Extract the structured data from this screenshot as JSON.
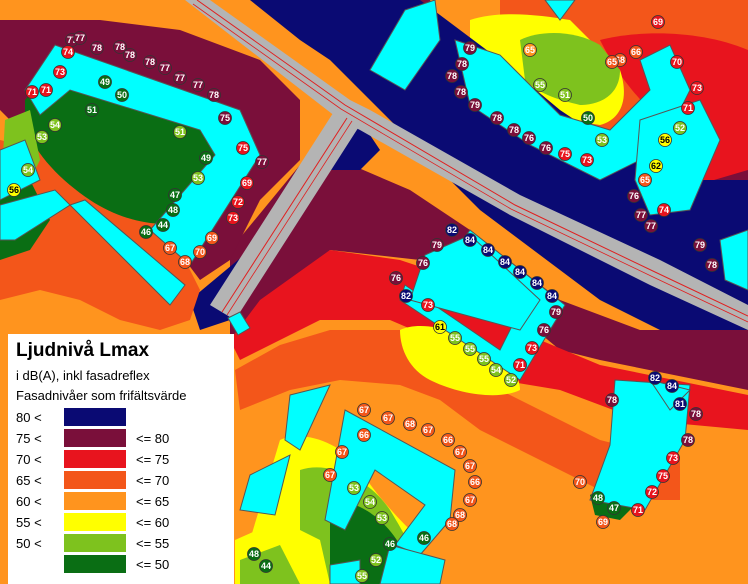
{
  "legend": {
    "title": "Ljudnivå Lmax",
    "subtitle": "i dB(A), inkl fasadreflex",
    "note": "Fasadnivåer som frifältsvärde",
    "classes": [
      {
        "lower": "80 <",
        "upper": "",
        "color": "#0a0a73"
      },
      {
        "lower": "75 <",
        "upper": "<= 80",
        "color": "#7a0f3a"
      },
      {
        "lower": "70 <",
        "upper": "<= 75",
        "color": "#e8141e"
      },
      {
        "lower": "65 <",
        "upper": "<= 70",
        "color": "#f3561a"
      },
      {
        "lower": "60 <",
        "upper": "<= 65",
        "color": "#ff941e"
      },
      {
        "lower": "55 <",
        "upper": "<= 60",
        "color": "#ffff00"
      },
      {
        "lower": "50 <",
        "upper": "<= 55",
        "color": "#7ec21e"
      },
      {
        "lower": "",
        "upper": "<= 50",
        "color": "#0a6e14"
      }
    ]
  },
  "colors": {
    "road": "#b4b4b4",
    "road_line": "#e02020",
    "building": "#00ffff"
  },
  "facade_levels": [
    {
      "v": "77",
      "c": "dark-red"
    },
    {
      "v": "77",
      "c": "dark-red"
    },
    {
      "v": "78",
      "c": "dark-red"
    },
    {
      "v": "78",
      "c": "dark-red"
    },
    {
      "v": "74",
      "c": "red"
    },
    {
      "v": "78",
      "c": "dark-red"
    },
    {
      "v": "78",
      "c": "dark-red"
    },
    {
      "v": "77",
      "c": "dark-red"
    },
    {
      "v": "73",
      "c": "red"
    },
    {
      "v": "71",
      "c": "red"
    },
    {
      "v": "71",
      "c": "red"
    },
    {
      "v": "49",
      "c": "green"
    },
    {
      "v": "50",
      "c": "green"
    },
    {
      "v": "51",
      "c": "green"
    },
    {
      "v": "77",
      "c": "dark-red"
    },
    {
      "v": "77",
      "c": "dark-red"
    },
    {
      "v": "78",
      "c": "dark-red"
    },
    {
      "v": "75",
      "c": "dark-red"
    },
    {
      "v": "54",
      "c": "light-green"
    },
    {
      "v": "53",
      "c": "light-green"
    },
    {
      "v": "51",
      "c": "light-green"
    },
    {
      "v": "49",
      "c": "green"
    },
    {
      "v": "54",
      "c": "light-green"
    },
    {
      "v": "56",
      "c": "yellow"
    },
    {
      "v": "53",
      "c": "light-green"
    },
    {
      "v": "47",
      "c": "green"
    },
    {
      "v": "48",
      "c": "green"
    },
    {
      "v": "44",
      "c": "green"
    },
    {
      "v": "46",
      "c": "green"
    },
    {
      "v": "67",
      "c": "orange-red"
    },
    {
      "v": "70",
      "c": "orange-red"
    },
    {
      "v": "68",
      "c": "orange-red"
    },
    {
      "v": "69",
      "c": "orange-red"
    },
    {
      "v": "72",
      "c": "red"
    },
    {
      "v": "73",
      "c": "red"
    },
    {
      "v": "69",
      "c": "red"
    },
    {
      "v": "75",
      "c": "red"
    },
    {
      "v": "77",
      "c": "dark-red"
    },
    {
      "v": "82",
      "c": "navy"
    },
    {
      "v": "84",
      "c": "navy"
    },
    {
      "v": "84",
      "c": "navy"
    },
    {
      "v": "84",
      "c": "navy"
    },
    {
      "v": "84",
      "c": "navy"
    },
    {
      "v": "84",
      "c": "navy"
    },
    {
      "v": "84",
      "c": "navy"
    },
    {
      "v": "79",
      "c": "dark-red"
    },
    {
      "v": "76",
      "c": "dark-red"
    },
    {
      "v": "73",
      "c": "red"
    },
    {
      "v": "71",
      "c": "red"
    },
    {
      "v": "52",
      "c": "light-green"
    },
    {
      "v": "54",
      "c": "light-green"
    },
    {
      "v": "55",
      "c": "light-green"
    },
    {
      "v": "55",
      "c": "light-green"
    },
    {
      "v": "55",
      "c": "light-green"
    },
    {
      "v": "61",
      "c": "yellow"
    },
    {
      "v": "73",
      "c": "red"
    },
    {
      "v": "76",
      "c": "dark-red"
    },
    {
      "v": "79",
      "c": "dark-red"
    },
    {
      "v": "82",
      "c": "navy"
    },
    {
      "v": "76",
      "c": "dark-red"
    },
    {
      "v": "79",
      "c": "dark-red"
    },
    {
      "v": "78",
      "c": "dark-red"
    },
    {
      "v": "78",
      "c": "dark-red"
    },
    {
      "v": "78",
      "c": "dark-red"
    },
    {
      "v": "79",
      "c": "dark-red"
    },
    {
      "v": "78",
      "c": "dark-red"
    },
    {
      "v": "78",
      "c": "dark-red"
    },
    {
      "v": "76",
      "c": "dark-red"
    },
    {
      "v": "76",
      "c": "dark-red"
    },
    {
      "v": "75",
      "c": "red"
    },
    {
      "v": "73",
      "c": "red"
    },
    {
      "v": "53",
      "c": "light-green"
    },
    {
      "v": "50",
      "c": "green"
    },
    {
      "v": "51",
      "c": "light-green"
    },
    {
      "v": "55",
      "c": "light-green"
    },
    {
      "v": "65",
      "c": "orange"
    },
    {
      "v": "68",
      "c": "orange-red"
    },
    {
      "v": "66",
      "c": "orange-red"
    },
    {
      "v": "65",
      "c": "orange-red"
    },
    {
      "v": "69",
      "c": "red"
    },
    {
      "v": "70",
      "c": "red"
    },
    {
      "v": "73",
      "c": "red"
    },
    {
      "v": "71",
      "c": "red"
    },
    {
      "v": "52",
      "c": "light-green"
    },
    {
      "v": "56",
      "c": "yellow"
    },
    {
      "v": "62",
      "c": "yellow"
    },
    {
      "v": "65",
      "c": "orange-red"
    },
    {
      "v": "76",
      "c": "dark-red"
    },
    {
      "v": "77",
      "c": "dark-red"
    },
    {
      "v": "77",
      "c": "dark-red"
    },
    {
      "v": "74",
      "c": "red"
    },
    {
      "v": "79",
      "c": "dark-red"
    },
    {
      "v": "78",
      "c": "dark-red"
    },
    {
      "v": "82",
      "c": "navy"
    },
    {
      "v": "84",
      "c": "navy"
    },
    {
      "v": "81",
      "c": "navy"
    },
    {
      "v": "78",
      "c": "dark-red"
    },
    {
      "v": "78",
      "c": "dark-red"
    },
    {
      "v": "78",
      "c": "dark-red"
    },
    {
      "v": "73",
      "c": "red"
    },
    {
      "v": "75",
      "c": "red"
    },
    {
      "v": "72",
      "c": "red"
    },
    {
      "v": "71",
      "c": "red"
    },
    {
      "v": "70",
      "c": "orange-red"
    },
    {
      "v": "48",
      "c": "green"
    },
    {
      "v": "47",
      "c": "green"
    },
    {
      "v": "69",
      "c": "orange-red"
    },
    {
      "v": "67",
      "c": "orange-red"
    },
    {
      "v": "67",
      "c": "orange-red"
    },
    {
      "v": "68",
      "c": "orange-red"
    },
    {
      "v": "67",
      "c": "orange-red"
    },
    {
      "v": "66",
      "c": "orange-red"
    },
    {
      "v": "67",
      "c": "orange-red"
    },
    {
      "v": "67",
      "c": "orange-red"
    },
    {
      "v": "66",
      "c": "orange-red"
    },
    {
      "v": "67",
      "c": "orange-red"
    },
    {
      "v": "68",
      "c": "orange-red"
    },
    {
      "v": "68",
      "c": "orange-red"
    },
    {
      "v": "66",
      "c": "orange-red"
    },
    {
      "v": "67",
      "c": "orange-red"
    },
    {
      "v": "67",
      "c": "orange-red"
    },
    {
      "v": "53",
      "c": "light-green"
    },
    {
      "v": "54",
      "c": "light-green"
    },
    {
      "v": "53",
      "c": "light-green"
    },
    {
      "v": "46",
      "c": "green"
    },
    {
      "v": "46",
      "c": "green"
    },
    {
      "v": "48",
      "c": "green"
    },
    {
      "v": "44",
      "c": "green"
    },
    {
      "v": "55",
      "c": "light-green"
    },
    {
      "v": "52",
      "c": "light-green"
    }
  ]
}
